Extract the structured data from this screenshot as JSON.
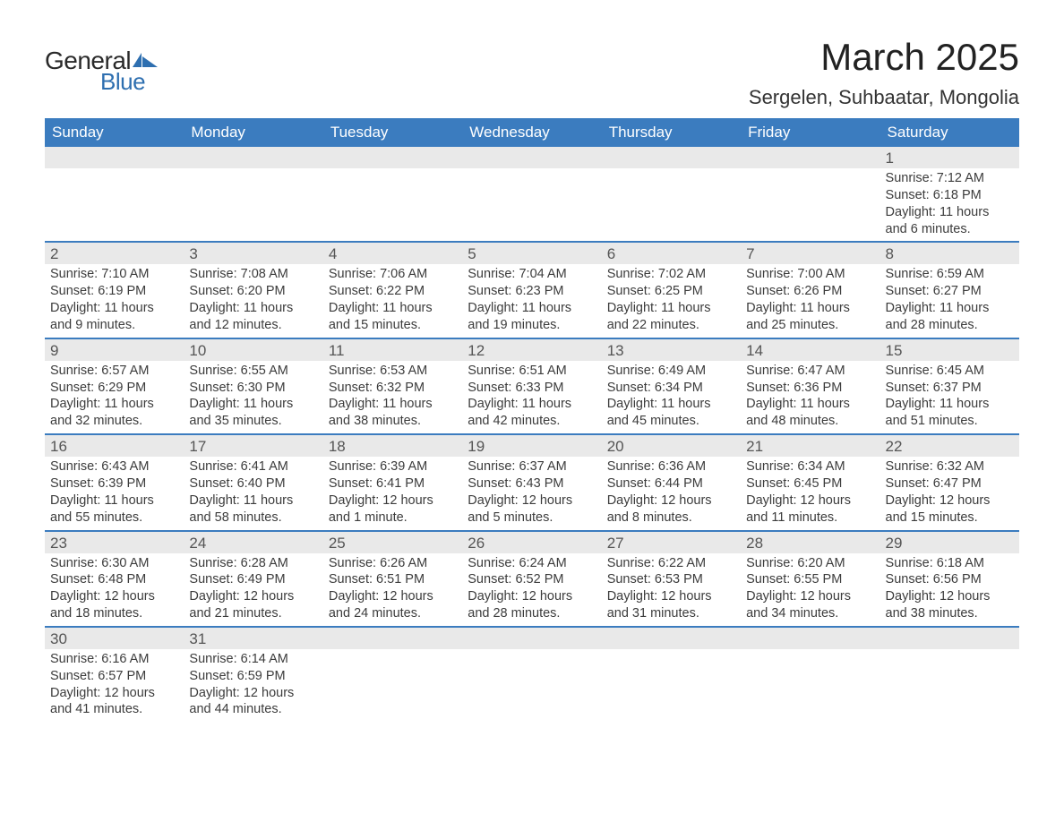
{
  "logo": {
    "text1": "General",
    "text2": "Blue",
    "flag_color": "#2e6fb0"
  },
  "title": "March 2025",
  "location": "Sergelen, Suhbaatar, Mongolia",
  "weekdays": [
    "Sunday",
    "Monday",
    "Tuesday",
    "Wednesday",
    "Thursday",
    "Friday",
    "Saturday"
  ],
  "style": {
    "header_bg": "#3b7cbf",
    "header_fg": "#ffffff",
    "daybar_bg": "#e9e9e9",
    "border_color": "#3b7cbf",
    "body_font_size": 14.5,
    "title_font_size": 42,
    "location_font_size": 22,
    "weekday_font_size": 17
  },
  "weeks": [
    [
      null,
      null,
      null,
      null,
      null,
      null,
      {
        "n": "1",
        "sunrise": "Sunrise: 7:12 AM",
        "sunset": "Sunset: 6:18 PM",
        "daylight": "Daylight: 11 hours and 6 minutes."
      }
    ],
    [
      {
        "n": "2",
        "sunrise": "Sunrise: 7:10 AM",
        "sunset": "Sunset: 6:19 PM",
        "daylight": "Daylight: 11 hours and 9 minutes."
      },
      {
        "n": "3",
        "sunrise": "Sunrise: 7:08 AM",
        "sunset": "Sunset: 6:20 PM",
        "daylight": "Daylight: 11 hours and 12 minutes."
      },
      {
        "n": "4",
        "sunrise": "Sunrise: 7:06 AM",
        "sunset": "Sunset: 6:22 PM",
        "daylight": "Daylight: 11 hours and 15 minutes."
      },
      {
        "n": "5",
        "sunrise": "Sunrise: 7:04 AM",
        "sunset": "Sunset: 6:23 PM",
        "daylight": "Daylight: 11 hours and 19 minutes."
      },
      {
        "n": "6",
        "sunrise": "Sunrise: 7:02 AM",
        "sunset": "Sunset: 6:25 PM",
        "daylight": "Daylight: 11 hours and 22 minutes."
      },
      {
        "n": "7",
        "sunrise": "Sunrise: 7:00 AM",
        "sunset": "Sunset: 6:26 PM",
        "daylight": "Daylight: 11 hours and 25 minutes."
      },
      {
        "n": "8",
        "sunrise": "Sunrise: 6:59 AM",
        "sunset": "Sunset: 6:27 PM",
        "daylight": "Daylight: 11 hours and 28 minutes."
      }
    ],
    [
      {
        "n": "9",
        "sunrise": "Sunrise: 6:57 AM",
        "sunset": "Sunset: 6:29 PM",
        "daylight": "Daylight: 11 hours and 32 minutes."
      },
      {
        "n": "10",
        "sunrise": "Sunrise: 6:55 AM",
        "sunset": "Sunset: 6:30 PM",
        "daylight": "Daylight: 11 hours and 35 minutes."
      },
      {
        "n": "11",
        "sunrise": "Sunrise: 6:53 AM",
        "sunset": "Sunset: 6:32 PM",
        "daylight": "Daylight: 11 hours and 38 minutes."
      },
      {
        "n": "12",
        "sunrise": "Sunrise: 6:51 AM",
        "sunset": "Sunset: 6:33 PM",
        "daylight": "Daylight: 11 hours and 42 minutes."
      },
      {
        "n": "13",
        "sunrise": "Sunrise: 6:49 AM",
        "sunset": "Sunset: 6:34 PM",
        "daylight": "Daylight: 11 hours and 45 minutes."
      },
      {
        "n": "14",
        "sunrise": "Sunrise: 6:47 AM",
        "sunset": "Sunset: 6:36 PM",
        "daylight": "Daylight: 11 hours and 48 minutes."
      },
      {
        "n": "15",
        "sunrise": "Sunrise: 6:45 AM",
        "sunset": "Sunset: 6:37 PM",
        "daylight": "Daylight: 11 hours and 51 minutes."
      }
    ],
    [
      {
        "n": "16",
        "sunrise": "Sunrise: 6:43 AM",
        "sunset": "Sunset: 6:39 PM",
        "daylight": "Daylight: 11 hours and 55 minutes."
      },
      {
        "n": "17",
        "sunrise": "Sunrise: 6:41 AM",
        "sunset": "Sunset: 6:40 PM",
        "daylight": "Daylight: 11 hours and 58 minutes."
      },
      {
        "n": "18",
        "sunrise": "Sunrise: 6:39 AM",
        "sunset": "Sunset: 6:41 PM",
        "daylight": "Daylight: 12 hours and 1 minute."
      },
      {
        "n": "19",
        "sunrise": "Sunrise: 6:37 AM",
        "sunset": "Sunset: 6:43 PM",
        "daylight": "Daylight: 12 hours and 5 minutes."
      },
      {
        "n": "20",
        "sunrise": "Sunrise: 6:36 AM",
        "sunset": "Sunset: 6:44 PM",
        "daylight": "Daylight: 12 hours and 8 minutes."
      },
      {
        "n": "21",
        "sunrise": "Sunrise: 6:34 AM",
        "sunset": "Sunset: 6:45 PM",
        "daylight": "Daylight: 12 hours and 11 minutes."
      },
      {
        "n": "22",
        "sunrise": "Sunrise: 6:32 AM",
        "sunset": "Sunset: 6:47 PM",
        "daylight": "Daylight: 12 hours and 15 minutes."
      }
    ],
    [
      {
        "n": "23",
        "sunrise": "Sunrise: 6:30 AM",
        "sunset": "Sunset: 6:48 PM",
        "daylight": "Daylight: 12 hours and 18 minutes."
      },
      {
        "n": "24",
        "sunrise": "Sunrise: 6:28 AM",
        "sunset": "Sunset: 6:49 PM",
        "daylight": "Daylight: 12 hours and 21 minutes."
      },
      {
        "n": "25",
        "sunrise": "Sunrise: 6:26 AM",
        "sunset": "Sunset: 6:51 PM",
        "daylight": "Daylight: 12 hours and 24 minutes."
      },
      {
        "n": "26",
        "sunrise": "Sunrise: 6:24 AM",
        "sunset": "Sunset: 6:52 PM",
        "daylight": "Daylight: 12 hours and 28 minutes."
      },
      {
        "n": "27",
        "sunrise": "Sunrise: 6:22 AM",
        "sunset": "Sunset: 6:53 PM",
        "daylight": "Daylight: 12 hours and 31 minutes."
      },
      {
        "n": "28",
        "sunrise": "Sunrise: 6:20 AM",
        "sunset": "Sunset: 6:55 PM",
        "daylight": "Daylight: 12 hours and 34 minutes."
      },
      {
        "n": "29",
        "sunrise": "Sunrise: 6:18 AM",
        "sunset": "Sunset: 6:56 PM",
        "daylight": "Daylight: 12 hours and 38 minutes."
      }
    ],
    [
      {
        "n": "30",
        "sunrise": "Sunrise: 6:16 AM",
        "sunset": "Sunset: 6:57 PM",
        "daylight": "Daylight: 12 hours and 41 minutes."
      },
      {
        "n": "31",
        "sunrise": "Sunrise: 6:14 AM",
        "sunset": "Sunset: 6:59 PM",
        "daylight": "Daylight: 12 hours and 44 minutes."
      },
      null,
      null,
      null,
      null,
      null
    ]
  ]
}
